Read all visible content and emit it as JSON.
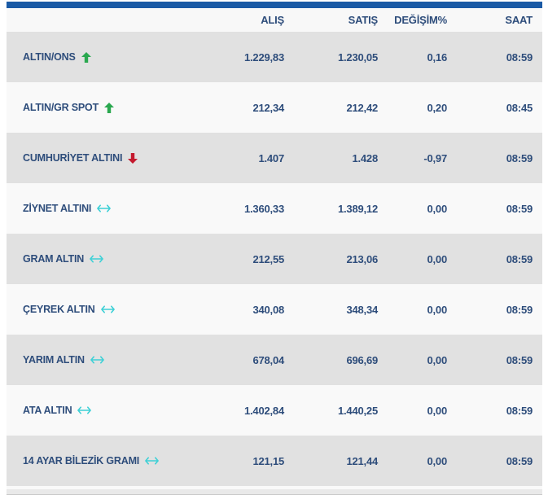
{
  "widget": {
    "title": "gold-prices-table",
    "colors": {
      "accent_bar": "#1a5aa5",
      "text": "#2e4d7b",
      "stripe_dark": "#e1e1e1",
      "stripe_light": "#f9f9f9",
      "header_bg": "#f8f8f8",
      "trend_up": "#2aa84f",
      "trend_down": "#c41a2e",
      "trend_flat": "#3ed0d6"
    },
    "table": {
      "header_labels": [
        "ALIŞ",
        "SATIŞ",
        "DEĞİŞİM%",
        "SAAT"
      ],
      "icons": {
        "up": "arrow-up-icon",
        "down": "arrow-down-icon",
        "flat": "arrow-left-right-icon"
      },
      "rows": [
        {
          "name": "ALTIN/ONS",
          "trend": "up",
          "alis": "1.229,83",
          "satis": "1.230,05",
          "degisim": "0,16",
          "saat": "08:59"
        },
        {
          "name": "ALTIN/GR SPOT",
          "trend": "up",
          "alis": "212,34",
          "satis": "212,42",
          "degisim": "0,20",
          "saat": "08:45"
        },
        {
          "name": "CUMHURİYET ALTINI",
          "trend": "down",
          "alis": "1.407",
          "satis": "1.428",
          "degisim": "-0,97",
          "saat": "08:59"
        },
        {
          "name": "ZİYNET ALTINI",
          "trend": "flat",
          "alis": "1.360,33",
          "satis": "1.389,12",
          "degisim": "0,00",
          "saat": "08:59"
        },
        {
          "name": "GRAM ALTIN",
          "trend": "flat",
          "alis": "212,55",
          "satis": "213,06",
          "degisim": "0,00",
          "saat": "08:59"
        },
        {
          "name": "ÇEYREK ALTIN",
          "trend": "flat",
          "alis": "340,08",
          "satis": "348,34",
          "degisim": "0,00",
          "saat": "08:59"
        },
        {
          "name": "YARIM ALTIN",
          "trend": "flat",
          "alis": "678,04",
          "satis": "696,69",
          "degisim": "0,00",
          "saat": "08:59"
        },
        {
          "name": "ATA ALTIN",
          "trend": "flat",
          "alis": "1.402,84",
          "satis": "1.440,25",
          "degisim": "0,00",
          "saat": "08:59"
        },
        {
          "name": "14 AYAR BİLEZİK GRAMI",
          "trend": "flat",
          "alis": "121,15",
          "satis": "121,44",
          "degisim": "0,00",
          "saat": "08:59"
        }
      ]
    }
  }
}
